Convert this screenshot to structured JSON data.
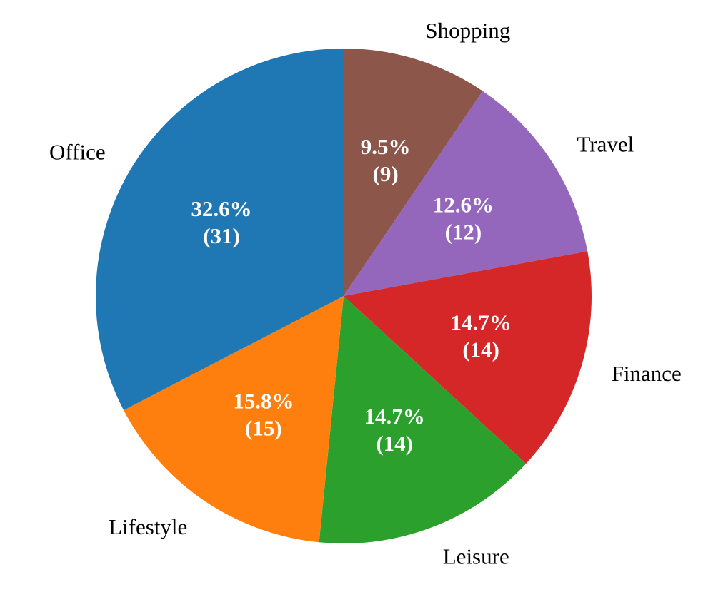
{
  "chart_data": {
    "type": "pie",
    "start_angle": "top",
    "direction": "clockwise",
    "slices": [
      {
        "label": "Shopping",
        "value": 9,
        "percent": "9.5%",
        "count": "(9)",
        "color": "#8c564b"
      },
      {
        "label": "Travel",
        "value": 12,
        "percent": "12.6%",
        "count": "(12)",
        "color": "#9467bd"
      },
      {
        "label": "Finance",
        "value": 14,
        "percent": "14.7%",
        "count": "(14)",
        "color": "#d62728"
      },
      {
        "label": "Leisure",
        "value": 14,
        "percent": "14.7%",
        "count": "(14)",
        "color": "#2ca02c"
      },
      {
        "label": "Lifestyle",
        "value": 15,
        "percent": "15.8%",
        "count": "(15)",
        "color": "#ff7f0e"
      },
      {
        "label": "Office",
        "value": 31,
        "percent": "32.6%",
        "count": "(31)",
        "color": "#1f77b4"
      }
    ]
  }
}
